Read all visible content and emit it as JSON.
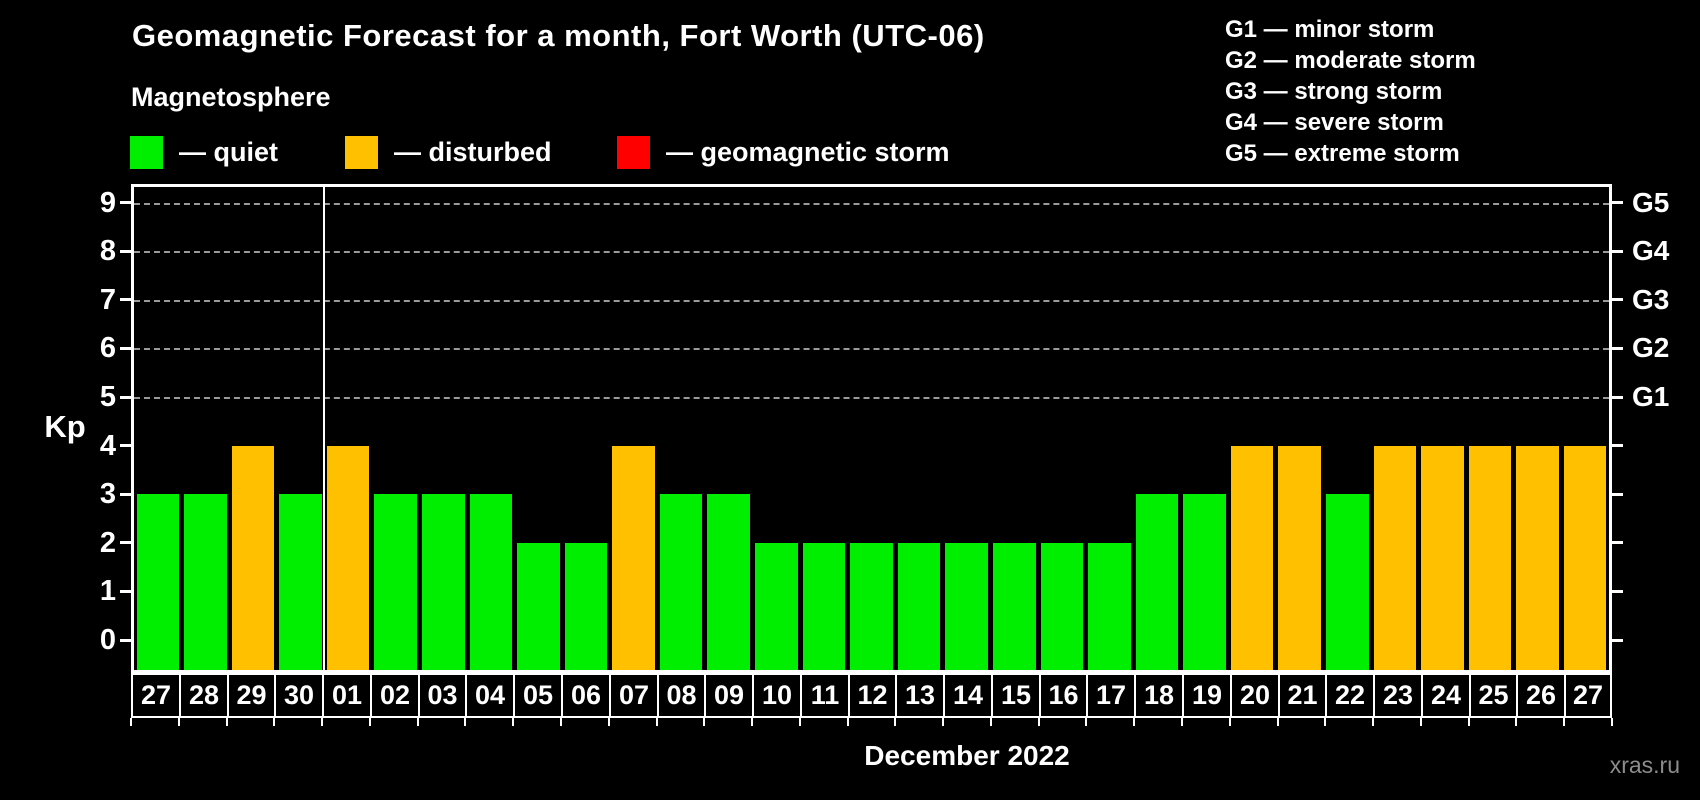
{
  "title": "Geomagnetic Forecast for a month, Fort Worth (UTC-06)",
  "subtitle": "Magnetosphere",
  "legend": [
    {
      "id": "quiet",
      "label": "— quiet",
      "color": "#00ee00"
    },
    {
      "id": "disturbed",
      "label": "— disturbed",
      "color": "#ffc000"
    },
    {
      "id": "storm",
      "label": "— geomagnetic storm",
      "color": "#fe0000"
    }
  ],
  "g_scale_legend": [
    "G1 — minor storm",
    "G2 — moderate storm",
    "G3 — strong storm",
    "G4 — severe storm",
    "G5 — extreme storm"
  ],
  "y_axis": {
    "title": "Kp",
    "ticks": [
      0,
      1,
      2,
      3,
      4,
      5,
      6,
      7,
      8,
      9
    ]
  },
  "right_axis": {
    "labels": [
      {
        "kp": 5,
        "label": "G1"
      },
      {
        "kp": 6,
        "label": "G2"
      },
      {
        "kp": 7,
        "label": "G3"
      },
      {
        "kp": 8,
        "label": "G4"
      },
      {
        "kp": 9,
        "label": "G5"
      }
    ]
  },
  "month_label": "December 2022",
  "watermark": "xras.ru",
  "chart_data": {
    "type": "bar",
    "title": "Geomagnetic Forecast for a month, Fort Worth (UTC-06)",
    "xlabel": "December 2022",
    "ylabel": "Kp",
    "ylim": [
      0,
      9.5
    ],
    "grid": true,
    "gridlines_at": [
      5,
      6,
      7,
      8,
      9
    ],
    "month_divider_after_index": 3,
    "categories": [
      "27",
      "28",
      "29",
      "30",
      "01",
      "02",
      "03",
      "04",
      "05",
      "06",
      "07",
      "08",
      "09",
      "10",
      "11",
      "12",
      "13",
      "14",
      "15",
      "16",
      "17",
      "18",
      "19",
      "20",
      "21",
      "22",
      "23",
      "24",
      "25",
      "26",
      "27"
    ],
    "values": [
      3,
      3,
      4,
      3,
      4,
      3,
      3,
      3,
      2,
      2,
      4,
      3,
      3,
      2,
      2,
      2,
      2,
      2,
      2,
      2,
      2,
      3,
      3,
      4,
      4,
      3,
      4,
      4,
      4,
      4,
      4
    ],
    "statuses": [
      "quiet",
      "quiet",
      "disturbed",
      "quiet",
      "disturbed",
      "quiet",
      "quiet",
      "quiet",
      "quiet",
      "quiet",
      "disturbed",
      "quiet",
      "quiet",
      "quiet",
      "quiet",
      "quiet",
      "quiet",
      "quiet",
      "quiet",
      "quiet",
      "quiet",
      "quiet",
      "quiet",
      "disturbed",
      "disturbed",
      "quiet",
      "disturbed",
      "disturbed",
      "disturbed",
      "disturbed",
      "disturbed"
    ],
    "color_map": {
      "quiet": "#00ee00",
      "disturbed": "#ffc000",
      "storm": "#fe0000"
    },
    "axis_color": "#ffffff",
    "grid_color": "#9a9a9a",
    "background": "#000000"
  }
}
